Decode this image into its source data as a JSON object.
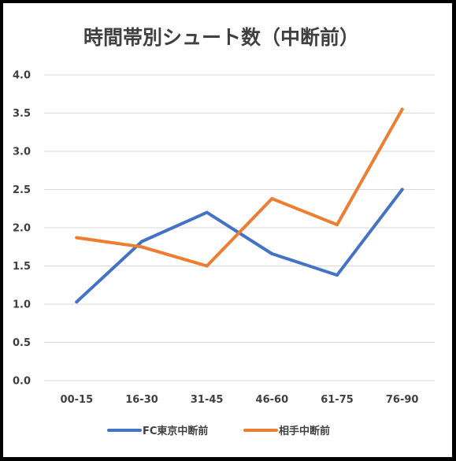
{
  "chart_data": {
    "type": "line",
    "title": "時間帯別シュート数（中断前）",
    "categories": [
      "00-15",
      "16-30",
      "31-45",
      "46-60",
      "61-75",
      "76-90"
    ],
    "ylim": [
      0,
      4
    ],
    "yticks": [
      "0.0",
      "0.5",
      "1.0",
      "1.5",
      "2.0",
      "2.5",
      "3.0",
      "3.5",
      "4.0"
    ],
    "grid": true,
    "legend_position": "bottom",
    "series": [
      {
        "name": "FC東京中断前",
        "color": "#4472c4",
        "values": [
          1.03,
          1.82,
          2.2,
          1.66,
          1.38,
          2.5
        ]
      },
      {
        "name": "相手中断前",
        "color": "#ed7d31",
        "values": [
          1.87,
          1.75,
          1.5,
          2.38,
          2.04,
          3.55
        ]
      }
    ]
  }
}
